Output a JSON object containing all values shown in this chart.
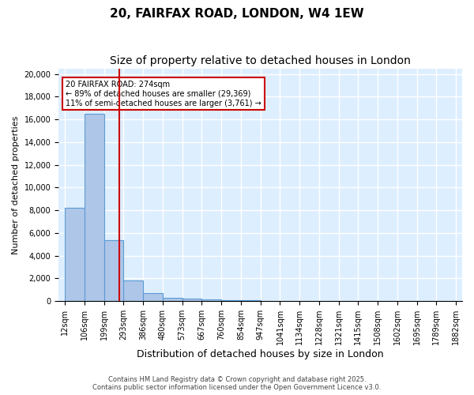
{
  "title": "20, FAIRFAX ROAD, LONDON, W4 1EW",
  "subtitle": "Size of property relative to detached houses in London",
  "xlabel": "Distribution of detached houses by size in London",
  "ylabel": "Number of detached properties",
  "bar_edges": [
    12,
    106,
    199,
    293,
    386,
    480,
    573,
    667,
    760,
    854,
    947,
    1041,
    1134,
    1228,
    1321,
    1415,
    1508,
    1602,
    1695,
    1789,
    1882
  ],
  "bar_heights": [
    8200,
    16500,
    5400,
    1800,
    700,
    310,
    220,
    150,
    100,
    60,
    40,
    30,
    20,
    15,
    12,
    10,
    8,
    6,
    5,
    4
  ],
  "bar_color": "#aec6e8",
  "bar_edge_color": "#5b9bd5",
  "bg_color": "#ddeeff",
  "grid_color": "#ffffff",
  "vline_x": 274,
  "vline_color": "#cc0000",
  "annotation_text": "20 FAIRFAX ROAD: 274sqm\n← 89% of detached houses are smaller (29,369)\n11% of semi-detached houses are larger (3,761) →",
  "annotation_box_color": "#cc0000",
  "ylim": [
    0,
    20500
  ],
  "yticks": [
    0,
    2000,
    4000,
    6000,
    8000,
    10000,
    12000,
    14000,
    16000,
    18000,
    20000
  ],
  "footer": "Contains HM Land Registry data © Crown copyright and database right 2025.\nContains public sector information licensed under the Open Government Licence v3.0.",
  "title_fontsize": 11,
  "subtitle_fontsize": 10,
  "tick_fontsize": 7,
  "ylabel_fontsize": 8,
  "xlabel_fontsize": 9
}
